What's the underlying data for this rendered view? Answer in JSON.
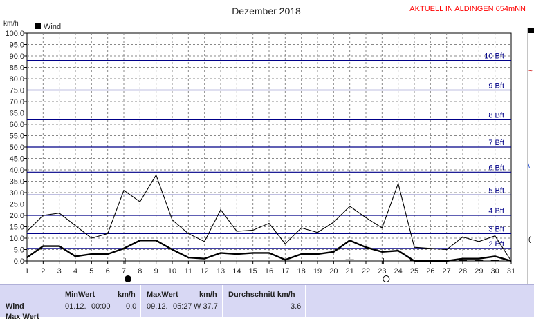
{
  "header": {
    "title": "Dezember 2018",
    "station": "AKTUELL IN ALDINGEN 654mNN"
  },
  "chart_data": {
    "type": "line",
    "title": "Dezember 2018",
    "ylabel": "km/h",
    "ylim": [
      0,
      100
    ],
    "xlim": [
      1,
      31
    ],
    "y_ticks": [
      "0.0",
      "5.0",
      "10.0",
      "15.0",
      "20.0",
      "25.0",
      "30.0",
      "35.0",
      "40.0",
      "45.0",
      "50.0",
      "55.0",
      "60.0",
      "65.0",
      "70.0",
      "75.0",
      "80.0",
      "85.0",
      "90.0",
      "95.0",
      "100.0"
    ],
    "x_ticks": [
      "1",
      "2",
      "3",
      "4",
      "5",
      "6",
      "7",
      "8",
      "9",
      "10",
      "11",
      "12",
      "13",
      "14",
      "15",
      "16",
      "17",
      "18",
      "19",
      "20",
      "21",
      "22",
      "23",
      "24",
      "25",
      "26",
      "27",
      "28",
      "29",
      "30",
      "31"
    ],
    "legend": {
      "label": "Wind",
      "color": "#000000",
      "position": "top-left"
    },
    "series": [
      {
        "name": "Wind",
        "role": "mean",
        "color": "#000000",
        "x": [
          1,
          2,
          3,
          4,
          5,
          6,
          7,
          8,
          9,
          10,
          11,
          12,
          13,
          14,
          15,
          16,
          17,
          18,
          19,
          20,
          21,
          22,
          23,
          24,
          25,
          26,
          27,
          28,
          29,
          30,
          31
        ],
        "values": [
          1.5,
          6.5,
          6.5,
          2.0,
          3.0,
          3.0,
          5.5,
          9.0,
          9.0,
          5.0,
          1.5,
          1.0,
          3.5,
          3.0,
          3.5,
          3.5,
          0.5,
          3.0,
          3.0,
          4.0,
          9.0,
          6.0,
          4.0,
          4.5,
          0.0,
          0.0,
          0.0,
          1.0,
          1.0,
          2.0,
          0.0
        ]
      },
      {
        "role": "gust",
        "color": "#000000",
        "x": [
          1,
          2,
          3,
          4,
          5,
          6,
          7,
          8,
          9,
          10,
          11,
          12,
          13,
          14,
          15,
          16,
          17,
          18,
          19,
          20,
          21,
          22,
          23,
          24,
          25,
          26,
          27,
          28,
          29,
          30,
          31
        ],
        "values": [
          13,
          20,
          21,
          15.5,
          10,
          12,
          31,
          26,
          37.7,
          18,
          12,
          8.5,
          22.5,
          13,
          13.5,
          16.5,
          7.5,
          14.5,
          12.5,
          17,
          24,
          19,
          14.5,
          34,
          6,
          5.5,
          5,
          10.5,
          8.5,
          11,
          0
        ]
      },
      {
        "role": "direction",
        "color": "#000000",
        "x": [
          21,
          25,
          26,
          27,
          28,
          29,
          30
        ],
        "values": [
          0.5,
          0.3,
          0.3,
          0.3,
          0.3,
          0.3,
          0.3
        ]
      }
    ],
    "beaufort": [
      {
        "label": "2 Bft",
        "value": 5.5
      },
      {
        "label": "3 Bft",
        "value": 12
      },
      {
        "label": "4 Bft",
        "value": 20
      },
      {
        "label": "5 Bft",
        "value": 29
      },
      {
        "label": "6 Bft",
        "value": 39
      },
      {
        "label": "7 Bft",
        "value": 50
      },
      {
        "label": "8 Bft",
        "value": 62
      },
      {
        "label": "9 Bft",
        "value": 75
      },
      {
        "label": "10 Bft",
        "value": 88
      }
    ],
    "moon": [
      {
        "day": 7,
        "phase": "new",
        "label": "new-moon"
      },
      {
        "day": 23,
        "phase": "full",
        "label": "full-moon"
      }
    ],
    "grid": true
  },
  "stats": {
    "row_label": "Wind",
    "min_header": "MinWert",
    "min_unit": "km/h",
    "min_date": "01.12.",
    "min_time": "00:00",
    "min_value": "0.0",
    "max_header": "MaxWert",
    "max_unit": "km/h",
    "max_date": "09.12.",
    "max_time": "05:27",
    "max_value": "W 37.7",
    "avg_header": "Durchschnitt km/h",
    "avg_value": "3.6",
    "second_row": "Max Wert"
  },
  "colors": {
    "background": "#ffffff",
    "plot_bg": "#ffffff",
    "beaufort_line": "#000088",
    "grid": "#888888",
    "station_text": "#ff0000",
    "panel": "#d8d8f4"
  }
}
